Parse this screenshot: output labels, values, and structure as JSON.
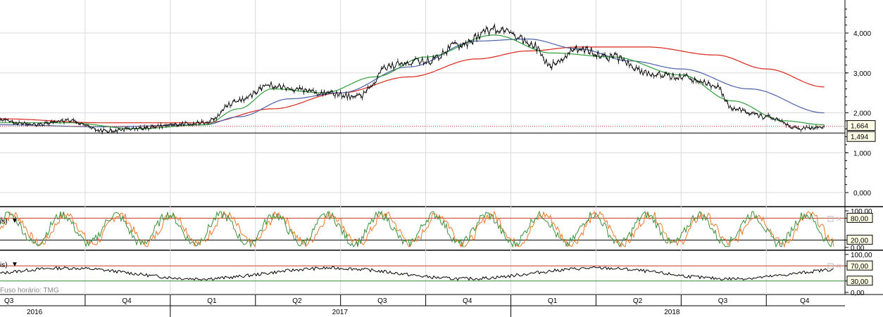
{
  "chart_data": [
    {
      "type": "candlestick",
      "ylim": [
        0,
        5
      ],
      "y_ticks": [
        "4,000",
        "3,000",
        "2,000",
        "1,000",
        "0,000"
      ],
      "markers": {
        "last_price": "1,664",
        "reference_line": "1,494"
      },
      "last_value": 1.664,
      "reference_value": 1.494,
      "series": [
        {
          "name": "price",
          "color": "#000000",
          "x": [
            2016.5,
            2016.6,
            2016.7,
            2016.8,
            2016.9,
            2017.0,
            2017.1,
            2017.2,
            2017.3,
            2017.35,
            2017.45,
            2017.55,
            2017.65,
            2017.75,
            2017.85,
            2017.95,
            2018.05,
            2018.12,
            2018.2,
            2018.3,
            2018.4,
            2018.5,
            2018.6,
            2018.65,
            2018.75,
            2018.85,
            2018.92
          ],
          "values": [
            1.8,
            1.7,
            1.8,
            1.55,
            1.6,
            1.7,
            1.75,
            2.3,
            2.7,
            2.6,
            2.5,
            2.4,
            3.2,
            3.3,
            3.7,
            4.1,
            3.8,
            3.2,
            3.6,
            3.4,
            3.0,
            2.9,
            2.7,
            2.1,
            1.9,
            1.6,
            1.66
          ]
        },
        {
          "name": "ma-green",
          "color": "#2e9d3a",
          "x": [
            2016.5,
            2016.7,
            2016.9,
            2017.1,
            2017.2,
            2017.3,
            2017.45,
            2017.6,
            2017.75,
            2017.95,
            2018.12,
            2018.3,
            2018.5,
            2018.65,
            2018.8,
            2018.92
          ],
          "values": [
            1.75,
            1.75,
            1.6,
            1.7,
            2.1,
            2.6,
            2.5,
            2.9,
            3.4,
            3.95,
            3.5,
            3.4,
            2.95,
            2.3,
            1.8,
            1.7
          ]
        },
        {
          "name": "ma-blue",
          "color": "#4b5fa6",
          "x": [
            2016.5,
            2016.8,
            2017.1,
            2017.2,
            2017.35,
            2017.5,
            2017.7,
            2017.9,
            2018.05,
            2018.2,
            2018.35,
            2018.5,
            2018.7,
            2018.92
          ],
          "values": [
            1.7,
            1.65,
            1.7,
            1.9,
            2.35,
            2.5,
            3.15,
            3.8,
            3.85,
            3.6,
            3.3,
            3.1,
            2.6,
            2.0
          ]
        },
        {
          "name": "ma-red",
          "color": "#d9261c",
          "x": [
            2016.5,
            2016.8,
            2017.1,
            2017.3,
            2017.5,
            2017.7,
            2017.9,
            2018.05,
            2018.2,
            2018.4,
            2018.6,
            2018.75,
            2018.92
          ],
          "values": [
            1.85,
            1.75,
            1.75,
            2.1,
            2.5,
            2.9,
            3.35,
            3.55,
            3.65,
            3.65,
            3.45,
            3.1,
            2.65
          ]
        }
      ]
    },
    {
      "type": "line",
      "legend_fragment": "is)",
      "ylim": [
        0,
        100
      ],
      "y_ticks": [
        "100,00",
        "80,00",
        "20,00",
        "0,00"
      ],
      "levels": {
        "upper": 80,
        "lower": 20
      },
      "series": [
        {
          "name": "stoch-k",
          "color": "#e8792b"
        },
        {
          "name": "stoch-d",
          "color": "#3d8f3d"
        }
      ]
    },
    {
      "type": "line",
      "legend_fragment": "is)",
      "ylim": [
        0,
        100
      ],
      "y_ticks": [
        "100,00",
        "70,00",
        "30,00",
        "0,00"
      ],
      "levels": {
        "upper": 70,
        "lower": 30
      },
      "series": [
        {
          "name": "rsi",
          "color": "#000000"
        }
      ]
    }
  ],
  "timezone_label": "Fuso horário: TMG",
  "quarters": [
    "Q3",
    "Q4",
    "Q1",
    "Q2",
    "Q3",
    "Q4",
    "Q1",
    "Q2",
    "Q3",
    "Q4"
  ],
  "years": [
    "2016",
    "2017",
    "2018"
  ],
  "colors": {
    "upper_level": "#c0392b",
    "lower_level": "#2e8b2e",
    "grid": "#d9d9d9",
    "label_bg": "#ffffe8"
  }
}
